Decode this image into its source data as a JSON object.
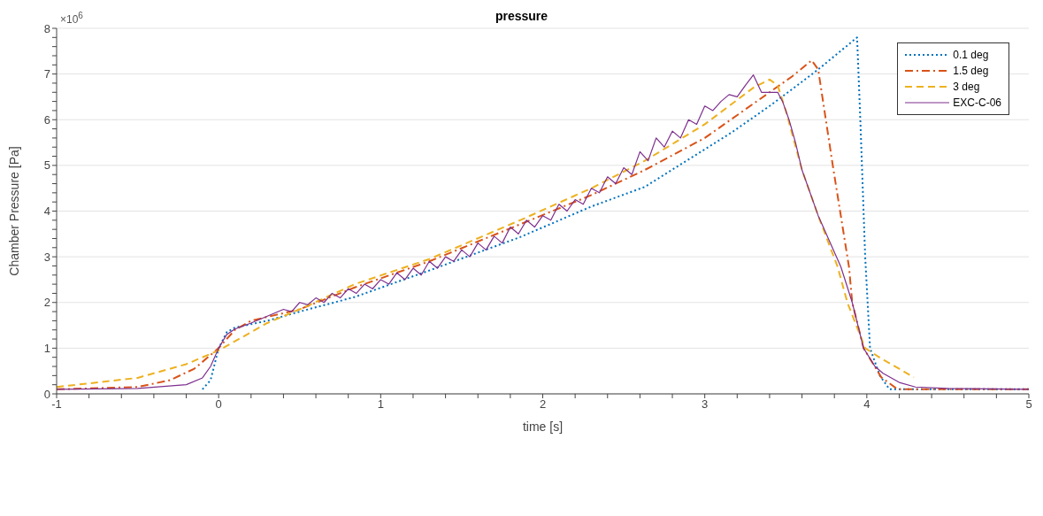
{
  "chart_data": {
    "type": "line",
    "title": "pressure",
    "xlabel": "time [s]",
    "ylabel": "Chamber Pressure [Pa]",
    "annotations": [
      "×10$^{6}$"
    ],
    "xlim": [
      -1,
      5
    ],
    "ylim": [
      0,
      8
    ],
    "xticks": [
      -1,
      {
        "value": -0.8,
        "label": null
      },
      {
        "value": -0.6,
        "label": null
      },
      {
        "value": -0.4,
        "label": null
      },
      {
        "value": -0.2,
        "label": null
      },
      0,
      {
        "value": 0.2,
        "label": null
      },
      {
        "value": 0.4,
        "label": null
      },
      {
        "value": 0.6,
        "label": null
      },
      {
        "value": 0.8,
        "label": null
      },
      1,
      {
        "value": 1.2,
        "label": null
      },
      {
        "value": 1.4,
        "label": null
      },
      {
        "value": 1.6,
        "label": null
      },
      {
        "value": 1.8,
        "label": null
      },
      2,
      {
        "value": 2.2,
        "label": null
      },
      {
        "value": 2.4,
        "label": null
      },
      {
        "value": 2.6,
        "label": null
      },
      {
        "value": 2.8,
        "label": null
      },
      3,
      {
        "value": 3.2,
        "label": null
      },
      {
        "value": 3.4,
        "label": null
      },
      {
        "value": 3.6,
        "label": null
      },
      {
        "value": 3.8,
        "label": null
      },
      4,
      {
        "value": 4.2,
        "label": null
      },
      {
        "value": 4.4,
        "label": null
      },
      {
        "value": 4.6,
        "label": null
      },
      {
        "value": 4.8,
        "label": null
      },
      5
    ],
    "yticks": [
      0,
      {
        "value": 0.2,
        "label": null
      },
      {
        "value": 0.4,
        "label": null
      },
      {
        "value": 0.6,
        "label": null
      },
      {
        "value": 0.8,
        "label": null
      },
      1,
      {
        "value": 1.2,
        "label": null
      },
      {
        "value": 1.4,
        "label": null
      },
      {
        "value": 1.6,
        "label": null
      },
      {
        "value": 1.8,
        "label": null
      },
      2,
      {
        "value": 2.2,
        "label": null
      },
      {
        "value": 2.4,
        "label": null
      },
      {
        "value": 2.6,
        "label": null
      },
      {
        "value": 2.8,
        "label": null
      },
      3,
      {
        "value": 3.2,
        "label": null
      },
      {
        "value": 3.4,
        "label": null
      },
      {
        "value": 3.6,
        "label": null
      },
      {
        "value": 3.8,
        "label": null
      },
      4,
      {
        "value": 4.2,
        "label": null
      },
      {
        "value": 4.4,
        "label": null
      },
      {
        "value": 4.6,
        "label": null
      },
      {
        "value": 4.8,
        "label": null
      },
      5,
      {
        "value": 5.2,
        "label": null
      },
      {
        "value": 5.4,
        "label": null
      },
      {
        "value": 5.6,
        "label": null
      },
      {
        "value": 5.8,
        "label": null
      },
      6,
      {
        "value": 6.2,
        "label": null
      },
      {
        "value": 6.4,
        "label": null
      },
      {
        "value": 6.6,
        "label": null
      },
      {
        "value": 6.8,
        "label": null
      },
      7,
      {
        "value": 7.2,
        "label": null
      },
      {
        "value": 7.4,
        "label": null
      },
      {
        "value": 7.6,
        "label": null
      },
      {
        "value": 7.8,
        "label": null
      },
      8
    ],
    "grid": "y",
    "legend": "top right",
    "marker": "none",
    "series": [
      {
        "name": "0.1 deg",
        "color": "#0072bd",
        "line_style": "dotted",
        "x": [
          -0.1,
          -0.05,
          0,
          0.05,
          0.1,
          0.3,
          0.5,
          0.84,
          1.3,
          1.86,
          2.3,
          2.63,
          3.17,
          3.4,
          3.54,
          3.7,
          3.94,
          3.96,
          3.99,
          4.02,
          4.08,
          4.14,
          5
        ],
        "values": [
          0.1,
          0.3,
          1.0,
          1.35,
          1.45,
          1.6,
          1.8,
          2.12,
          2.7,
          3.43,
          4.1,
          4.53,
          5.73,
          6.3,
          6.67,
          7.1,
          7.8,
          6.0,
          3.0,
          1.0,
          0.4,
          0.1,
          0.1
        ]
      },
      {
        "name": "1.5 deg",
        "color": "#d95319",
        "line_style": "dashdot",
        "x": [
          -1,
          -0.5,
          -0.3,
          -0.15,
          0,
          0.1,
          0.2,
          0.5,
          0.84,
          1.3,
          1.86,
          2.3,
          2.63,
          3.0,
          3.4,
          3.54,
          3.66,
          3.7,
          3.79,
          3.89,
          3.91,
          3.98,
          4.09,
          4.19,
          5
        ],
        "values": [
          0.1,
          0.15,
          0.3,
          0.55,
          1.0,
          1.4,
          1.6,
          1.85,
          2.33,
          2.9,
          3.71,
          4.35,
          4.9,
          5.6,
          6.6,
          6.95,
          7.3,
          7.1,
          5.0,
          2.78,
          2.0,
          1.0,
          0.36,
          0.1,
          0.1
        ]
      },
      {
        "name": "3 deg",
        "color": "#edb120",
        "line_style": "dashed",
        "x": [
          -1,
          -0.5,
          -0.2,
          0,
          0.15,
          0.3,
          0.5,
          0.84,
          1.3,
          1.86,
          2.3,
          2.63,
          3.0,
          3.3,
          3.4,
          3.45,
          3.5,
          3.6,
          3.7,
          3.82,
          3.88,
          3.99,
          4.1,
          4.2,
          4.29
        ],
        "values": [
          0.15,
          0.35,
          0.65,
          0.95,
          1.25,
          1.55,
          1.85,
          2.4,
          2.95,
          3.8,
          4.5,
          5.1,
          5.9,
          6.7,
          6.88,
          6.75,
          6.2,
          4.9,
          3.9,
          2.78,
          2.0,
          1.0,
          0.75,
          0.55,
          0.36
        ]
      },
      {
        "name": "EXC-C-06",
        "color": "#7e2f8e",
        "line_style": "solid",
        "x": [
          -1,
          -0.5,
          -0.2,
          -0.1,
          -0.05,
          0,
          0.05,
          0.1,
          0.2,
          0.3,
          0.4,
          0.45,
          0.5,
          0.55,
          0.6,
          0.65,
          0.7,
          0.75,
          0.8,
          0.85,
          0.9,
          0.95,
          1.0,
          1.05,
          1.1,
          1.15,
          1.2,
          1.25,
          1.3,
          1.35,
          1.4,
          1.45,
          1.5,
          1.55,
          1.6,
          1.65,
          1.7,
          1.75,
          1.8,
          1.85,
          1.9,
          1.95,
          2.0,
          2.05,
          2.1,
          2.15,
          2.2,
          2.25,
          2.3,
          2.35,
          2.4,
          2.45,
          2.5,
          2.55,
          2.6,
          2.65,
          2.7,
          2.75,
          2.8,
          2.85,
          2.9,
          2.95,
          3.0,
          3.05,
          3.1,
          3.15,
          3.2,
          3.25,
          3.3,
          3.35,
          3.45,
          3.48,
          3.52,
          3.56,
          3.6,
          3.7,
          3.84,
          3.91,
          3.98,
          4.05,
          4.1,
          4.2,
          4.3,
          4.5,
          5
        ],
        "values": [
          0.1,
          0.12,
          0.2,
          0.35,
          0.6,
          1.0,
          1.3,
          1.42,
          1.55,
          1.7,
          1.85,
          1.8,
          2.0,
          1.95,
          2.1,
          2.0,
          2.2,
          2.1,
          2.3,
          2.2,
          2.4,
          2.3,
          2.5,
          2.4,
          2.65,
          2.5,
          2.75,
          2.6,
          2.9,
          2.75,
          3.0,
          2.9,
          3.15,
          3.0,
          3.3,
          3.15,
          3.45,
          3.3,
          3.65,
          3.5,
          3.8,
          3.65,
          3.9,
          3.8,
          4.15,
          4.0,
          4.25,
          4.15,
          4.5,
          4.4,
          4.75,
          4.6,
          4.95,
          4.8,
          5.3,
          5.1,
          5.6,
          5.4,
          5.75,
          5.6,
          6.0,
          5.9,
          6.3,
          6.2,
          6.4,
          6.55,
          6.5,
          6.75,
          6.98,
          6.6,
          6.6,
          6.4,
          6.0,
          5.5,
          4.9,
          3.9,
          2.78,
          2.0,
          1.0,
          0.6,
          0.45,
          0.25,
          0.15,
          0.12,
          0.1
        ]
      }
    ]
  }
}
